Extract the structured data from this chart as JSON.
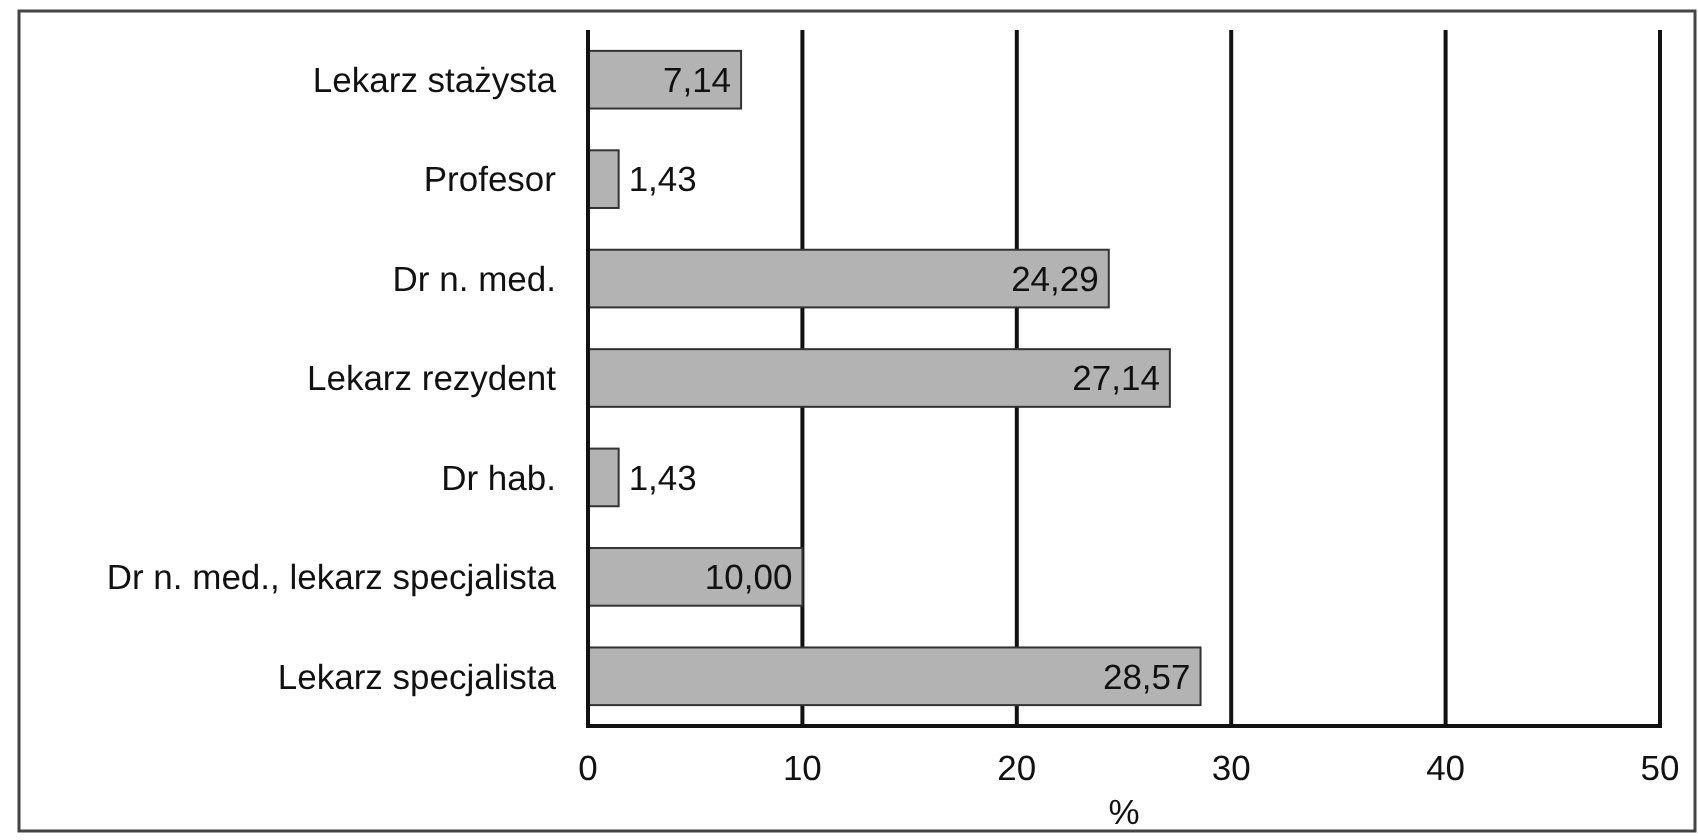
{
  "chart_data": {
    "type": "bar",
    "orientation": "horizontal",
    "categories": [
      "Lekarz stażysta",
      "Profesor",
      "Dr n. med.",
      "Lekarz rezydent",
      "Dr hab.",
      "Dr n. med., lekarz specjalista",
      "Lekarz specjalista"
    ],
    "values": [
      7.14,
      1.43,
      24.29,
      27.14,
      1.43,
      10.0,
      28.57
    ],
    "value_labels": [
      "7,14",
      "1,43",
      "24,29",
      "27,14",
      "1,43",
      "10,00",
      "28,57"
    ],
    "color": "#b3b3b3",
    "xlabel": "%",
    "xlim": [
      0,
      50
    ],
    "xticks": [
      0,
      10,
      20,
      30,
      40,
      50
    ],
    "grid": "x"
  }
}
